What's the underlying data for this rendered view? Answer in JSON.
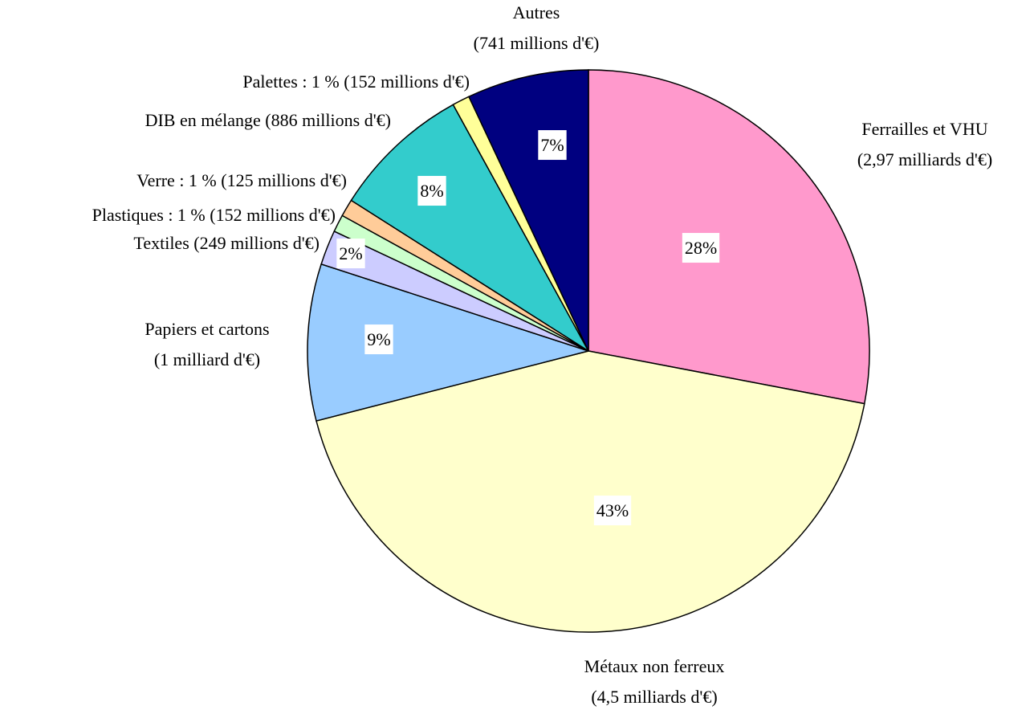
{
  "chart_data": {
    "type": "pie",
    "categories": [
      [
        "Ferrailles et VHU",
        "(2,97 milliards d'€)"
      ],
      [
        "Métaux non ferreux",
        "(4,5 milliards d'€)"
      ],
      [
        "Papiers et cartons",
        "(1 milliard d'€)"
      ],
      [
        "Textiles (249 millions d'€)"
      ],
      [
        "Plastiques : 1 % (152 millions d'€)"
      ],
      [
        "Verre : 1 % (125 millions d'€)"
      ],
      [
        "DIB en mélange (886 millions d'€)"
      ],
      [
        "Palettes : 1 % (152 millions d'€)"
      ],
      [
        "Autres",
        "(741 millions d'€)"
      ]
    ],
    "values": [
      28,
      43,
      9,
      2,
      1,
      1,
      8,
      1,
      7
    ],
    "value_labels": [
      "28%",
      "43%",
      "9%",
      "2%",
      null,
      null,
      "8%",
      null,
      "7%"
    ],
    "colors": [
      "#ff99cc",
      "#ffffcc",
      "#99ccff",
      "#ccccff",
      "#ccffcc",
      "#ffcc99",
      "#33cccc",
      "#ffff99",
      "#000080"
    ]
  }
}
